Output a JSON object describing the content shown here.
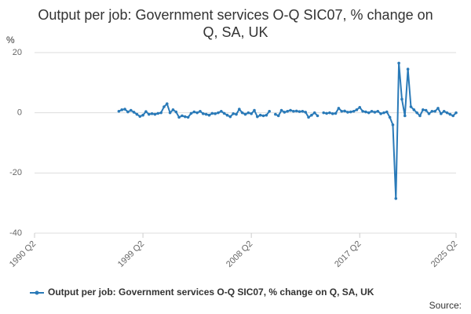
{
  "chart_data": {
    "type": "line",
    "title": "Output per job: Government services O-Q SIC07, % change on Q, SA, UK",
    "y_label": "%",
    "source": "Source:",
    "categories": [
      "1990 Q2",
      null,
      null,
      null,
      null,
      null,
      null,
      null,
      null,
      null,
      null,
      null,
      null,
      null,
      null,
      null,
      null,
      null,
      null,
      null,
      null,
      null,
      null,
      null,
      null,
      null,
      null,
      null,
      null,
      null,
      null,
      null,
      null,
      null,
      null,
      null,
      "1999 Q2",
      null,
      null,
      null,
      null,
      null,
      null,
      null,
      null,
      null,
      null,
      null,
      null,
      null,
      null,
      null,
      null,
      null,
      null,
      null,
      null,
      null,
      null,
      null,
      null,
      null,
      null,
      null,
      null,
      null,
      null,
      null,
      null,
      null,
      null,
      null,
      "2008 Q2",
      null,
      null,
      null,
      null,
      null,
      null,
      null,
      null,
      null,
      null,
      null,
      null,
      null,
      null,
      null,
      null,
      null,
      null,
      null,
      null,
      null,
      null,
      null,
      null,
      null,
      null,
      null,
      null,
      null,
      null,
      null,
      null,
      null,
      null,
      null,
      "2017 Q2",
      null,
      null,
      null,
      null,
      null,
      null,
      null,
      null,
      null,
      null,
      null,
      null,
      null,
      null,
      null,
      null,
      null,
      null,
      null,
      null,
      null,
      null,
      null,
      null,
      null,
      null,
      null,
      null,
      null,
      null,
      null,
      "2025 Q2"
    ],
    "series": [
      {
        "name": "Output per job: Government services O-Q SIC07, % change on Q, SA, UK",
        "color": "#2a7ab8",
        "values": [
          null,
          null,
          null,
          null,
          null,
          null,
          null,
          null,
          null,
          null,
          null,
          null,
          null,
          null,
          null,
          null,
          null,
          null,
          null,
          null,
          null,
          null,
          null,
          null,
          null,
          null,
          null,
          null,
          0.5,
          1.0,
          1.2,
          0.3,
          0.8,
          0.2,
          -0.5,
          -1.2,
          -0.8,
          0.4,
          -0.5,
          -0.3,
          -0.5,
          -0.2,
          0.0,
          2.0,
          3.0,
          0.0,
          1.0,
          0.3,
          -1.5,
          -1.0,
          -1.3,
          -1.5,
          -0.2,
          0.3,
          0.0,
          0.5,
          -0.3,
          -0.5,
          -0.8,
          -0.2,
          -0.3,
          0.0,
          0.5,
          -0.2,
          -0.8,
          -1.3,
          -0.3,
          -0.5,
          1.2,
          0.0,
          -0.5,
          0.0,
          -0.3,
          0.8,
          -1.3,
          -0.8,
          -1.0,
          -0.8,
          0.5,
          null,
          -0.5,
          -1.0,
          0.8,
          0.2,
          0.5,
          0.8,
          0.5,
          0.6,
          0.4,
          0.5,
          0.2,
          -1.5,
          -0.8,
          0.0,
          -1.0,
          null,
          0.0,
          -0.2,
          0.0,
          -0.3,
          -0.2,
          1.5,
          0.5,
          0.6,
          0.2,
          0.3,
          0.5,
          1.0,
          1.8,
          0.5,
          0.3,
          0.0,
          0.5,
          0.2,
          0.5,
          -0.3,
          0.0,
          0.3,
          -1.5,
          -4.0,
          -28.5,
          16.5,
          4.5,
          -1.0,
          14.5,
          2.0,
          1.0,
          0.0,
          -1.0,
          1.0,
          0.8,
          -0.3,
          0.5,
          0.5,
          1.5,
          -0.3,
          0.5,
          0.0,
          -0.5,
          -1.0,
          0.0
        ]
      }
    ],
    "ylim": [
      -40,
      20
    ],
    "yticks": [
      20,
      0,
      -20,
      -40
    ],
    "grid": true
  }
}
